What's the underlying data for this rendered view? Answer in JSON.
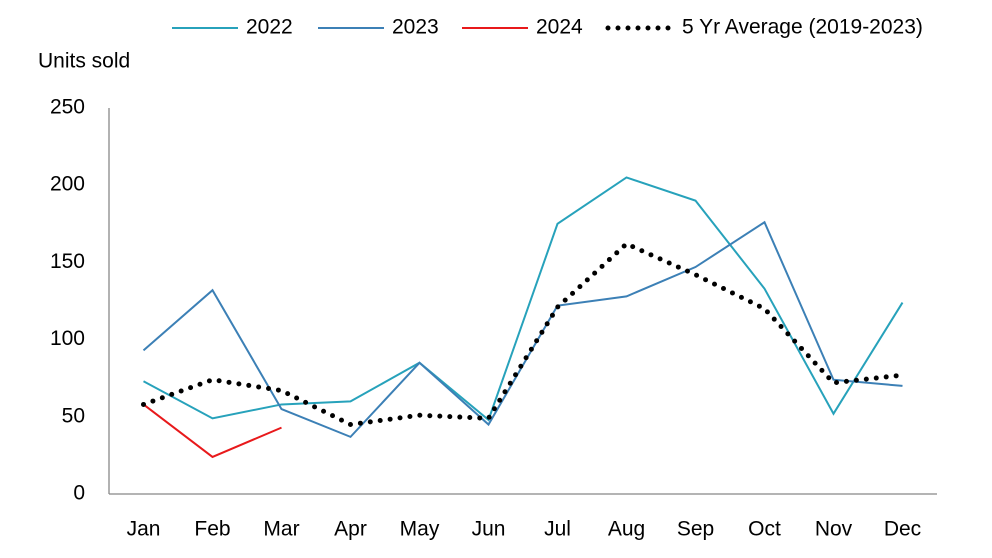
{
  "chart_data": {
    "type": "line",
    "y_label": "Units sold",
    "categories": [
      "Jan",
      "Feb",
      "Mar",
      "Apr",
      "May",
      "Jun",
      "Jul",
      "Aug",
      "Sep",
      "Oct",
      "Nov",
      "Dec"
    ],
    "series": [
      {
        "name": "2022",
        "color": "#27a2bb",
        "values": [
          73,
          49,
          58,
          60,
          85,
          48,
          175,
          205,
          190,
          133,
          52,
          124
        ]
      },
      {
        "name": "2023",
        "color": "#3c80b6",
        "values": [
          93,
          132,
          55,
          37,
          85,
          45,
          122,
          128,
          147,
          176,
          74,
          70
        ]
      },
      {
        "name": "2024",
        "color": "#e8191b",
        "values": [
          58,
          24,
          43,
          null,
          null,
          null,
          null,
          null,
          null,
          null,
          null,
          null
        ]
      },
      {
        "name": "5 Yr Average (2019-2023)",
        "color": "#000000",
        "dotted": true,
        "values": [
          58,
          74,
          67,
          45,
          51,
          49,
          121,
          162,
          142,
          120,
          72,
          77
        ]
      }
    ],
    "ylim": [
      0,
      250
    ],
    "yticks": [
      0,
      50,
      100,
      150,
      200,
      250
    ],
    "grid": false
  }
}
